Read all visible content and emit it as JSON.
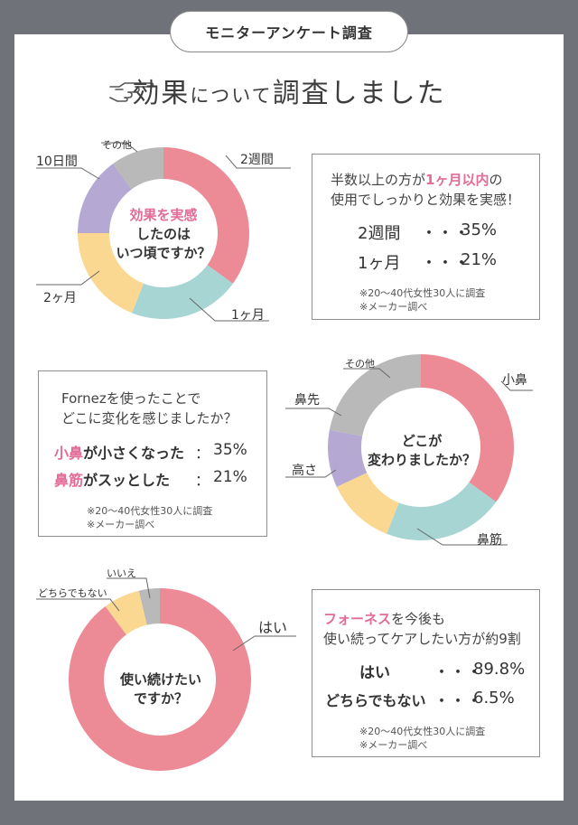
{
  "header": {
    "tag": "モニターアンケート調査",
    "title_a": "効果",
    "title_b": "について",
    "title_c": "調査しました"
  },
  "chart_data": [
    {
      "type": "pie",
      "title": "効果を実感したのはいつ頃ですか？",
      "categories": [
        "2週間",
        "1ヶ月",
        "2ヶ月",
        "10日間",
        "その他"
      ],
      "values": [
        35,
        21,
        19,
        15,
        10
      ],
      "colors": [
        "#ec8a95",
        "#a6d5d3",
        "#fad892",
        "#b5a9d3",
        "#b9b9b9"
      ]
    },
    {
      "type": "pie",
      "title": "どこが変わりましたか？",
      "categories": [
        "小鼻",
        "鼻筋",
        "高さ",
        "鼻先",
        "その他"
      ],
      "values": [
        35,
        21,
        12,
        10,
        22
      ],
      "colors": [
        "#ec8a95",
        "#a6d5d3",
        "#fad892",
        "#b5a9d3",
        "#b9b9b9"
      ]
    },
    {
      "type": "pie",
      "title": "使い続けたいですか？",
      "categories": [
        "はい",
        "どちらでもない",
        "いいえ"
      ],
      "values": [
        89.8,
        6.5,
        3.7
      ],
      "colors": [
        "#ec8a95",
        "#fad892",
        "#b9b9b9"
      ]
    }
  ],
  "chart1": {
    "center": [
      "効果を実感",
      "したのは",
      "いつ頃ですか？"
    ],
    "labels": [
      "2週間",
      "1ヶ月",
      "2ヶ月",
      "10日間",
      "その他"
    ]
  },
  "box1": {
    "line1_a": "半数以上の方が",
    "line1_b": "1ヶ月以内",
    "line1_c": "の",
    "line2": "使用でしっかりと効果を実感！",
    "stat1_label": "2週間",
    "stat1_dots": "・・・",
    "stat1_value": "35%",
    "stat2_label": "1ヶ月",
    "stat2_dots": "・・・",
    "stat2_value": "21%",
    "note1": "※20～40代女性30人に調査",
    "note2": "※メーカー調べ"
  },
  "box2": {
    "line1": "Fornezを使ったことで",
    "line2": "どこに変化を感じましたか？",
    "stat1_a": "小鼻",
    "stat1_b": "が小さくなった",
    "stat1_sep": "：",
    "stat1_value": "35%",
    "stat2_a": "鼻筋",
    "stat2_b": "がスッとした",
    "stat2_sep": "：",
    "stat2_value": "21%",
    "note1": "※20～40代女性30人に調査",
    "note2": "※メーカー調べ"
  },
  "chart2": {
    "center": [
      "どこが",
      "変わりましたか？"
    ],
    "labels": [
      "小鼻",
      "鼻筋",
      "高さ",
      "鼻先",
      "その他"
    ]
  },
  "chart3": {
    "center": [
      "使い続けたい",
      "ですか？"
    ],
    "labels": [
      "はい",
      "どちらでもない",
      "いいえ"
    ]
  },
  "box3": {
    "line1_a": "フォーネス",
    "line1_b": "を今後も",
    "line2": "使い続ってケアしたい方が約9割",
    "stat1_label": "はい",
    "stat1_dots": "・・・",
    "stat1_value": "89.8%",
    "stat2_label": "どちらでもない",
    "stat2_dots": "・・・",
    "stat2_value": "6.5%",
    "note1": "※20～40代女性30人に調査",
    "note2": "※メーカー調べ"
  }
}
